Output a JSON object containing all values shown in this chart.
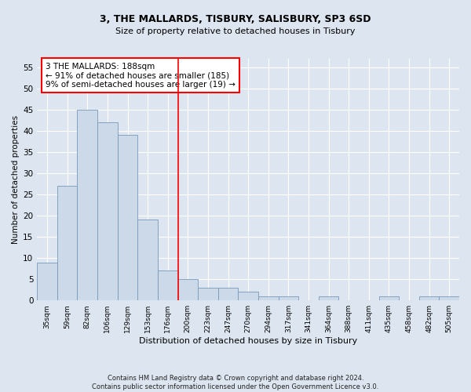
{
  "title1": "3, THE MALLARDS, TISBURY, SALISBURY, SP3 6SD",
  "title2": "Size of property relative to detached houses in Tisbury",
  "xlabel": "Distribution of detached houses by size in Tisbury",
  "ylabel": "Number of detached properties",
  "bar_color": "#ccd9e8",
  "bar_edge_color": "#7799bb",
  "categories": [
    "35sqm",
    "59sqm",
    "82sqm",
    "106sqm",
    "129sqm",
    "153sqm",
    "176sqm",
    "200sqm",
    "223sqm",
    "247sqm",
    "270sqm",
    "294sqm",
    "317sqm",
    "341sqm",
    "364sqm",
    "388sqm",
    "411sqm",
    "435sqm",
    "458sqm",
    "482sqm",
    "505sqm"
  ],
  "values": [
    9,
    27,
    45,
    42,
    39,
    19,
    7,
    5,
    3,
    3,
    2,
    1,
    1,
    0,
    1,
    0,
    0,
    1,
    0,
    1,
    1
  ],
  "ylim": [
    0,
    57
  ],
  "yticks": [
    0,
    5,
    10,
    15,
    20,
    25,
    30,
    35,
    40,
    45,
    50,
    55
  ],
  "red_line_x": 6.5,
  "annotation_line1": "3 THE MALLARDS: 188sqm",
  "annotation_line2": "← 91% of detached houses are smaller (185)",
  "annotation_line3": "9% of semi-detached houses are larger (19) →",
  "footer1": "Contains HM Land Registry data © Crown copyright and database right 2024.",
  "footer2": "Contains public sector information licensed under the Open Government Licence v3.0.",
  "background_color": "#dde6f0",
  "plot_bg_color": "#dde6f0"
}
